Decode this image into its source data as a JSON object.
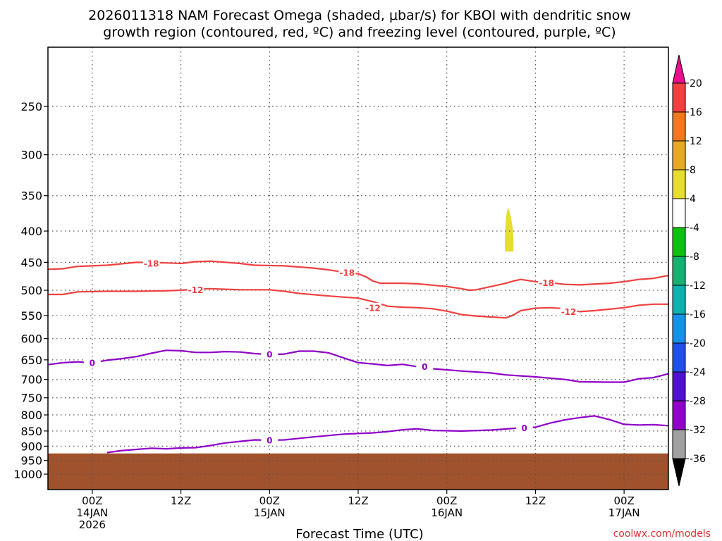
{
  "chart_data": {
    "type": "contour",
    "title_lines": [
      "2026011318 NAM Forecast Omega (shaded, μbar/s) for KBOI with dendritic snow",
      "growth region (contoured, red, ºC) and freezing level (contoured, purple, ºC)"
    ],
    "xlabel": "Forecast Time (UTC)",
    "credit": "coolwx.com/models",
    "y_axis": {
      "scale": "log-pressure",
      "inverted": true,
      "units": "hPa",
      "range": [
        200,
        1060
      ],
      "ticks": [
        250,
        300,
        350,
        400,
        450,
        500,
        550,
        600,
        650,
        700,
        750,
        800,
        850,
        900,
        950,
        1000
      ]
    },
    "x_axis": {
      "units": "hours since init 2026011318",
      "range": [
        0,
        84
      ],
      "ticks": [
        {
          "hour": 6,
          "lines": [
            "00Z",
            "14JAN",
            "2026"
          ]
        },
        {
          "hour": 18,
          "lines": [
            "12Z"
          ]
        },
        {
          "hour": 30,
          "lines": [
            "00Z",
            "15JAN"
          ]
        },
        {
          "hour": 42,
          "lines": [
            "12Z"
          ]
        },
        {
          "hour": 54,
          "lines": [
            "00Z",
            "16JAN"
          ]
        },
        {
          "hour": 66,
          "lines": [
            "12Z"
          ]
        },
        {
          "hour": 78,
          "lines": [
            "00Z",
            "17JAN"
          ]
        }
      ]
    },
    "grid": true,
    "contours": [
      {
        "level": "-18",
        "color": "#f04040",
        "points": [
          [
            0,
            462
          ],
          [
            2,
            461
          ],
          [
            4,
            457
          ],
          [
            8,
            455
          ],
          [
            12,
            450
          ],
          [
            16,
            451
          ],
          [
            18,
            452
          ],
          [
            20,
            449
          ],
          [
            22,
            448
          ],
          [
            26,
            452
          ],
          [
            28,
            455
          ],
          [
            32,
            456
          ],
          [
            36,
            460
          ],
          [
            38,
            463
          ],
          [
            40,
            467
          ],
          [
            42,
            470
          ],
          [
            43,
            475
          ],
          [
            44,
            483
          ],
          [
            45,
            487
          ],
          [
            48,
            487
          ],
          [
            50,
            488
          ],
          [
            54,
            493
          ],
          [
            56,
            497
          ],
          [
            57,
            500
          ],
          [
            58,
            499
          ],
          [
            60,
            493
          ],
          [
            62,
            487
          ],
          [
            63,
            483
          ],
          [
            64,
            480
          ],
          [
            66,
            484
          ],
          [
            68,
            486
          ],
          [
            70,
            489
          ],
          [
            72,
            490
          ],
          [
            76,
            487
          ],
          [
            78,
            484
          ],
          [
            80,
            480
          ],
          [
            82,
            478
          ],
          [
            84,
            473
          ]
        ],
        "labels": [
          {
            "x": 14,
            "y": 452
          },
          {
            "x": 40.5,
            "y": 468
          },
          {
            "x": 67.5,
            "y": 486
          }
        ]
      },
      {
        "level": "-12",
        "color": "#f04040",
        "points": [
          [
            0,
            508
          ],
          [
            2,
            508
          ],
          [
            4,
            503
          ],
          [
            8,
            502
          ],
          [
            12,
            502
          ],
          [
            16,
            501
          ],
          [
            18,
            500
          ],
          [
            20,
            498
          ],
          [
            22,
            497
          ],
          [
            26,
            499
          ],
          [
            30,
            499
          ],
          [
            32,
            502
          ],
          [
            34,
            506
          ],
          [
            38,
            511
          ],
          [
            42,
            515
          ],
          [
            44,
            522
          ],
          [
            46,
            531
          ],
          [
            48,
            533
          ],
          [
            50,
            534
          ],
          [
            52,
            536
          ],
          [
            54,
            541
          ],
          [
            56,
            548
          ],
          [
            58,
            551
          ],
          [
            60,
            553
          ],
          [
            62,
            555
          ],
          [
            63,
            549
          ],
          [
            64,
            540
          ],
          [
            66,
            535
          ],
          [
            68,
            534
          ],
          [
            70,
            536
          ],
          [
            72,
            542
          ],
          [
            74,
            540
          ],
          [
            76,
            537
          ],
          [
            78,
            534
          ],
          [
            80,
            529
          ],
          [
            82,
            527
          ],
          [
            84,
            527
          ]
        ],
        "labels": [
          {
            "x": 20,
            "y": 499
          },
          {
            "x": 44,
            "y": 534
          },
          {
            "x": 70.5,
            "y": 542
          }
        ]
      },
      {
        "level": "0",
        "color": "#9000c8",
        "points": [
          [
            0,
            662
          ],
          [
            2,
            657
          ],
          [
            4,
            655
          ],
          [
            6,
            657
          ],
          [
            8,
            651
          ],
          [
            10,
            647
          ],
          [
            12,
            642
          ],
          [
            14,
            634
          ],
          [
            16,
            627
          ],
          [
            18,
            628
          ],
          [
            20,
            632
          ],
          [
            22,
            632
          ],
          [
            24,
            630
          ],
          [
            26,
            631
          ],
          [
            28,
            635
          ],
          [
            30,
            637
          ],
          [
            32,
            636
          ],
          [
            34,
            629
          ],
          [
            36,
            629
          ],
          [
            38,
            633
          ],
          [
            40,
            645
          ],
          [
            42,
            657
          ],
          [
            44,
            660
          ],
          [
            46,
            664
          ],
          [
            48,
            661
          ],
          [
            50,
            667
          ],
          [
            52,
            672
          ],
          [
            56,
            678
          ],
          [
            60,
            683
          ],
          [
            62,
            688
          ],
          [
            66,
            693
          ],
          [
            70,
            700
          ],
          [
            72,
            706
          ],
          [
            76,
            707
          ],
          [
            78,
            707
          ],
          [
            80,
            698
          ],
          [
            82,
            695
          ],
          [
            84,
            685
          ]
        ],
        "labels": [
          {
            "x": 6,
            "y": 657
          },
          {
            "x": 30,
            "y": 637
          },
          {
            "x": 51,
            "y": 667
          }
        ]
      },
      {
        "level": "0",
        "color": "#9000c8",
        "points": [
          [
            8,
            922
          ],
          [
            10,
            915
          ],
          [
            12,
            911
          ],
          [
            14,
            907
          ],
          [
            16,
            909
          ],
          [
            18,
            906
          ],
          [
            20,
            905
          ],
          [
            22,
            898
          ],
          [
            24,
            889
          ],
          [
            26,
            884
          ],
          [
            28,
            879
          ],
          [
            30,
            880
          ],
          [
            32,
            879
          ],
          [
            34,
            874
          ],
          [
            36,
            869
          ],
          [
            40,
            860
          ],
          [
            42,
            858
          ],
          [
            44,
            856
          ],
          [
            46,
            852
          ],
          [
            48,
            846
          ],
          [
            50,
            843
          ],
          [
            52,
            848
          ],
          [
            56,
            850
          ],
          [
            60,
            847
          ],
          [
            64,
            840
          ],
          [
            66,
            838
          ],
          [
            68,
            825
          ],
          [
            70,
            815
          ],
          [
            72,
            808
          ],
          [
            74,
            803
          ],
          [
            76,
            814
          ],
          [
            78,
            829
          ],
          [
            80,
            831
          ],
          [
            82,
            830
          ],
          [
            84,
            833
          ]
        ],
        "labels": [
          {
            "x": 30,
            "y": 880
          },
          {
            "x": 64.5,
            "y": 840
          }
        ]
      }
    ],
    "omega_shading": [
      {
        "range": [
          4,
          8
        ],
        "color": "#e6dc32",
        "x_range": [
          61.9,
          63.0
        ],
        "p_range": [
          366,
          432
        ]
      }
    ],
    "terrain": {
      "color": "#a0522d",
      "surface_pressure_hpa": 925
    },
    "colorbar": {
      "units": "μbar/s",
      "labels": [
        "20",
        "16",
        "12",
        "8",
        "4",
        "-4",
        "-8",
        "-12",
        "-16",
        "-20",
        "-24",
        "-28",
        "-32",
        "-36"
      ],
      "colors": [
        "#e8108c",
        "#f04040",
        "#f07820",
        "#e8a828",
        "#e6dc32",
        "#ffffff",
        "#10c010",
        "#18b070",
        "#10b0b0",
        "#1890e8",
        "#2050e8",
        "#5010d0",
        "#9000c8",
        "#a0a0a0",
        "#000000"
      ]
    }
  }
}
